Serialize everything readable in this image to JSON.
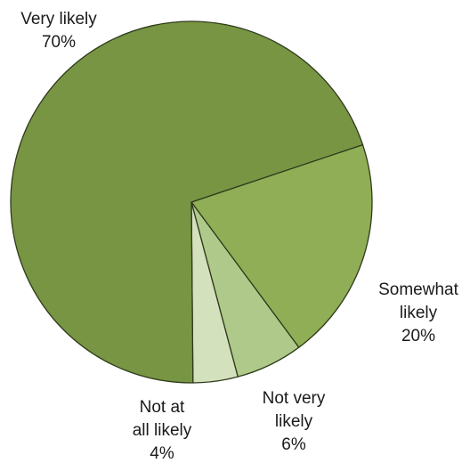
{
  "chart_data": {
    "type": "pie",
    "title": "",
    "start": "top, clockwise",
    "slices": [
      {
        "label": "Somewhat likely",
        "label_lines": [
          "Somewhat",
          "likely"
        ],
        "value": 20,
        "value_label": "20%",
        "color": "#8fae55"
      },
      {
        "label": "Not very likely",
        "label_lines": [
          "Not very",
          "likely"
        ],
        "value": 6,
        "value_label": "6%",
        "color": "#afc98a"
      },
      {
        "label": "Not at all likely",
        "label_lines": [
          "Not at",
          "all likely"
        ],
        "value": 4,
        "value_label": "4%",
        "color": "#d4e1bd"
      },
      {
        "label": "Very likely",
        "label_lines": [
          "Very likely"
        ],
        "value": 70,
        "value_label": "70%",
        "color": "#779543"
      }
    ]
  }
}
